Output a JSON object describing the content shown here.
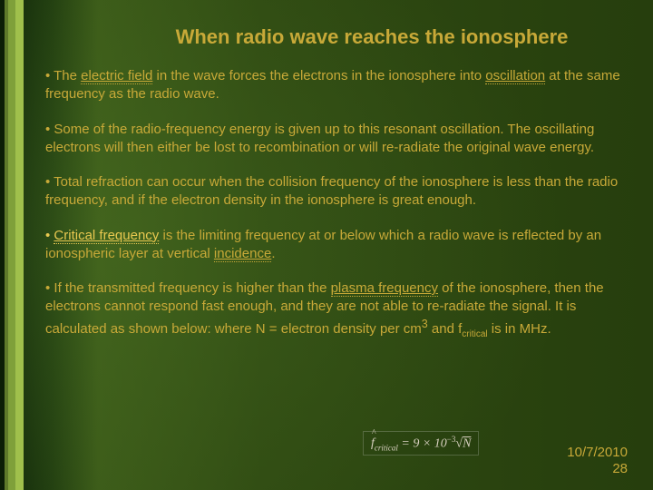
{
  "colors": {
    "title": "#c8a938",
    "body": "#c8a938",
    "highlight": "#e8c850",
    "link": "#d0b040",
    "footer": "#c8a938",
    "formula_text": "#d8d0c0",
    "stripes": [
      "#0b1e06",
      "#5e7a2a",
      "#7fa03a",
      "#a0c04c"
    ]
  },
  "fontsize": {
    "title_pt": 22,
    "body_pt": 15,
    "footer_pt": 15
  },
  "title": "When radio wave reaches the ionosphere",
  "bullets": {
    "b1a": "• The ",
    "b1_link1": "electric field",
    "b1b": " in the wave forces the electrons in the ionosphere into ",
    "b1_link2": "oscillation",
    "b1c": " at the same frequency as the radio wave.",
    "b2": "• Some of the radio-frequency energy is given up to this resonant oscillation. The oscillating electrons will then either be lost to recombination or will re-radiate the original wave energy.",
    "b3": "• Total refraction can occur when the collision frequency of the ionosphere is less than the radio frequency, and if the electron density in the ionosphere is great enough.",
    "b4a": "• ",
    "b4_link1": "Critical frequency",
    "b4b": " is the limiting frequency at or below which a radio wave is reflected by an ionospheric layer at vertical ",
    "b4_link2": "incidence",
    "b4c": ".",
    "b5a": "• If the transmitted frequency is higher than the ",
    "b5_link1": "plasma frequency",
    "b5b": " of the ionosphere, then the electrons cannot respond fast enough, and they are not able to re-radiate the signal. It is calculated as shown below: where N = electron density per cm",
    "b5_sup": "3",
    "b5c": " and f",
    "b5_sub": "critical",
    "b5d": " is in MHz."
  },
  "formula": {
    "prefix": "f",
    "sub": "critical",
    "eq": " = 9 × 10",
    "exp": "−3",
    "sqrt": "√",
    "n": "N"
  },
  "footer": {
    "date": "10/7/2010",
    "page": "28"
  }
}
